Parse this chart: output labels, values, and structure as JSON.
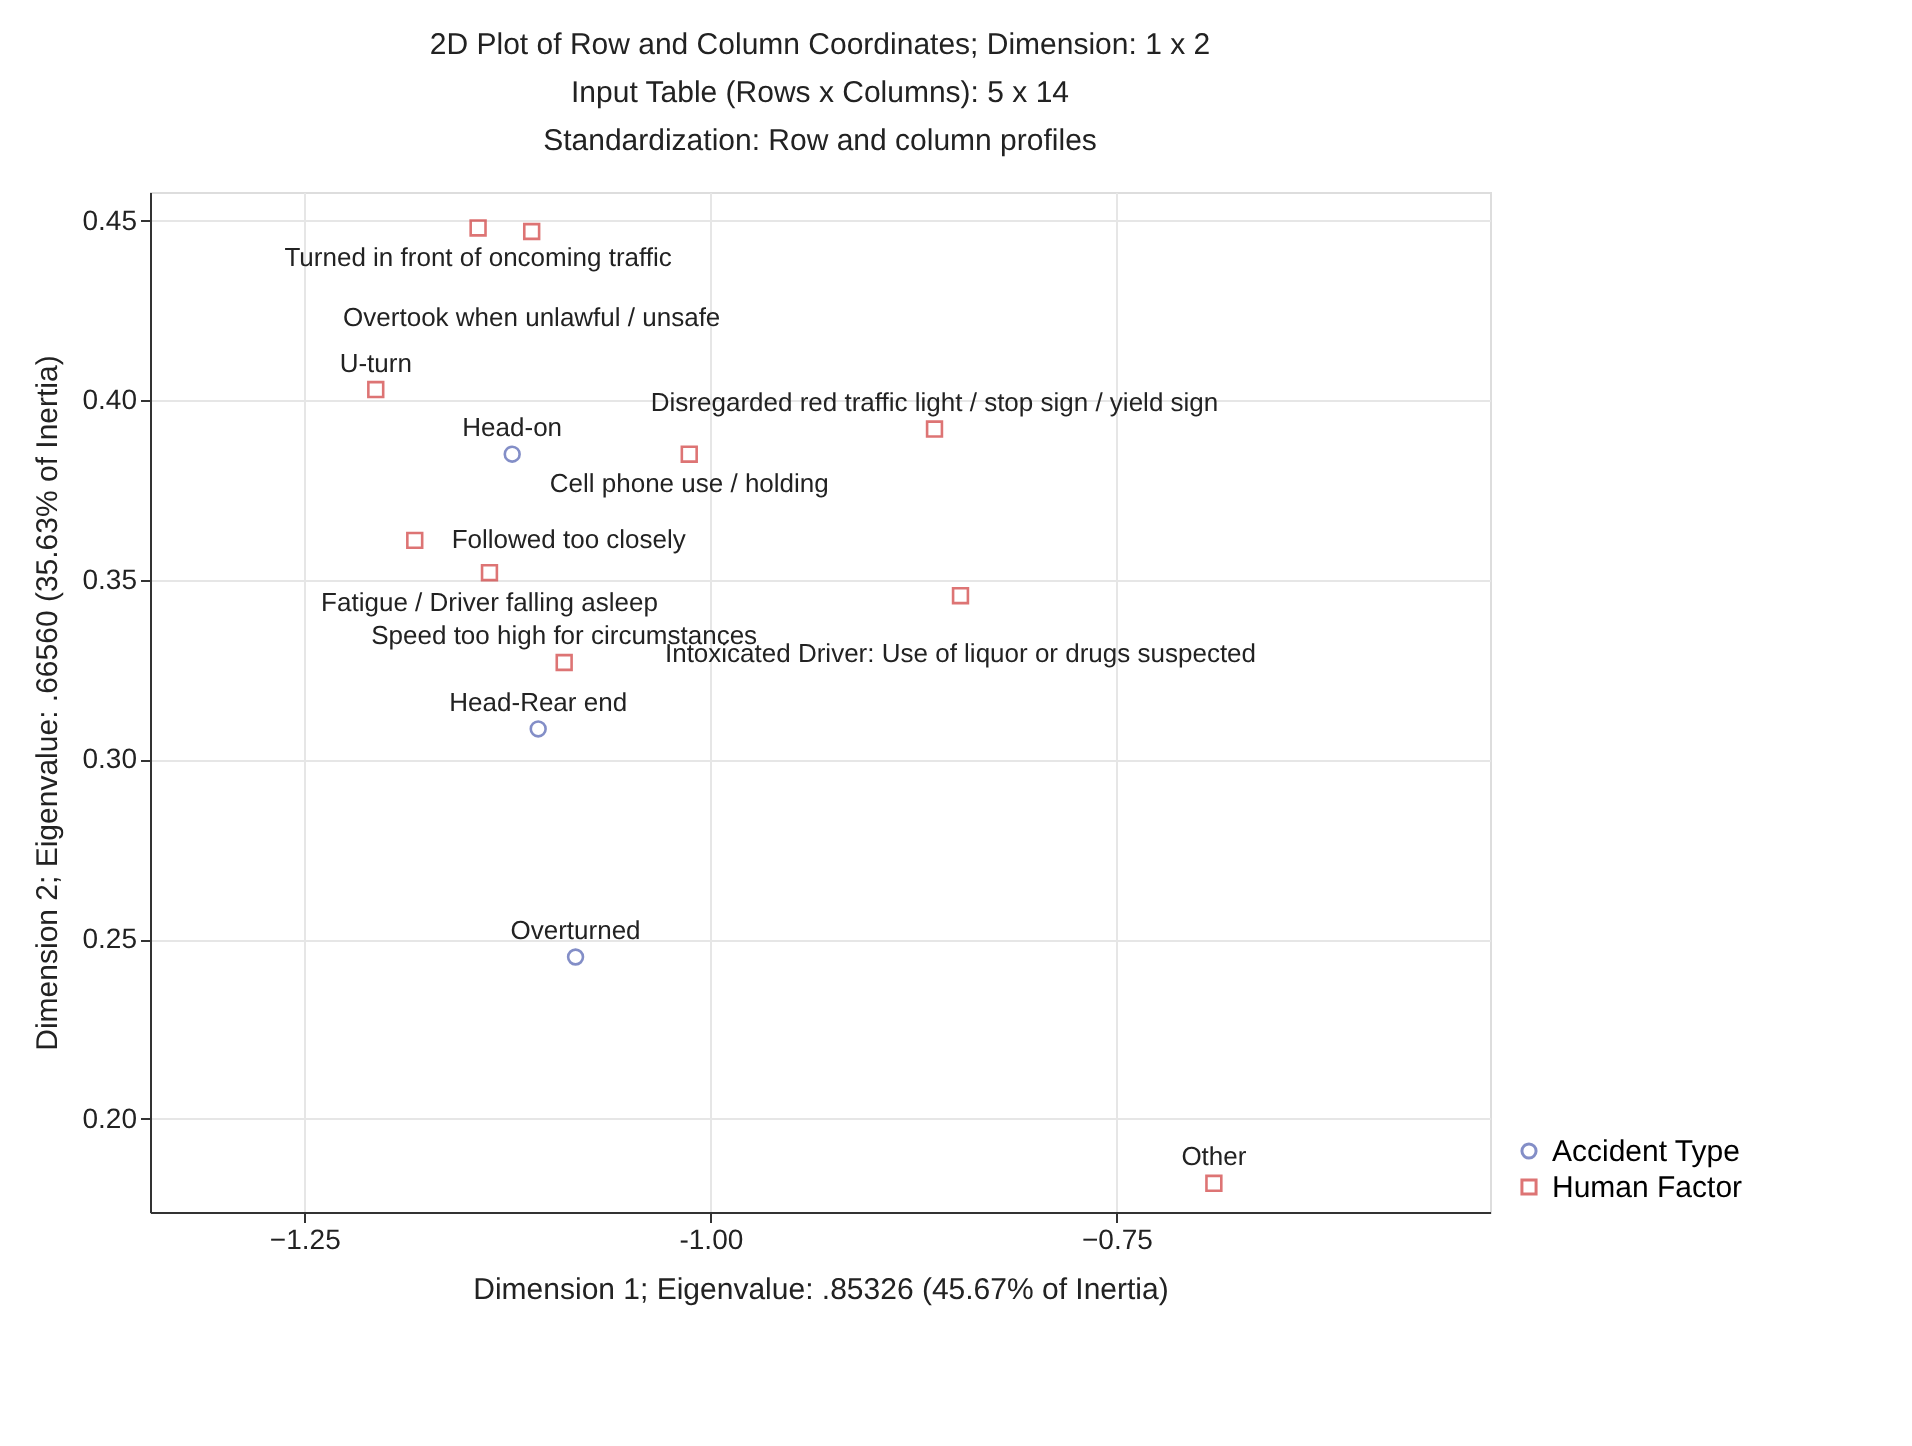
{
  "chart_data": {
    "type": "scatter",
    "title": "2D Plot of Row and Column Coordinates; Dimension:  1 x  2\nInput Table (Rows x Columns): 5 x 14\nStandardization: Row and column profiles",
    "xlabel": "Dimension 1; Eigenvalue: .85326 (45.67% of Inertia)",
    "ylabel": "Dimension 2; Eigenvalue: .66560 (35.63% of Inertia)",
    "xlim": [
      -1.345,
      -0.52
    ],
    "xticks": [
      -1.25,
      {
        "value": -1,
        "label": "-1.00"
      },
      -0.75
    ],
    "ylim": [
      0.174,
      0.458
    ],
    "yticks": [
      {
        "value": 0.2,
        "label": "0.20"
      },
      0.25,
      {
        "value": 0.3,
        "label": "0.30"
      },
      0.35,
      {
        "value": 0.4,
        "label": "0.40"
      },
      0.45
    ],
    "grid": true,
    "legend": "bottom right",
    "series": [
      {
        "name": "Accident Type",
        "color": "#4f5fb0",
        "marker": "circle",
        "x": [
          -1.122,
          -1.106,
          -1.083
        ],
        "values": [
          0.385,
          0.3085,
          0.245
        ],
        "value_labels": [
          "Head-on",
          "Head-Rear end",
          "Overturned"
        ]
      },
      {
        "name": "Human Factor",
        "color": "#d03a3a",
        "marker": "square",
        "x": [
          -1.143,
          -1.11,
          -1.206,
          -1.013,
          -0.862,
          -1.182,
          -1.136,
          -0.846,
          -1.09,
          -0.69
        ],
        "values": [
          0.448,
          0.447,
          0.403,
          0.385,
          0.392,
          0.361,
          0.352,
          0.3456,
          0.327,
          0.182
        ],
        "value_labels": [
          "Turned in front of oncoming traffic",
          "Overtook when unlawful / unsafe",
          "U-turn",
          "Cell phone use / holding",
          "Disregarded red traffic light / stop sign / yield sign",
          "Followed too closely",
          "Fatigue / Driver falling asleep",
          "Intoxicated Driver: Use of  liquor or drugs suspected",
          "Speed too high for circumstances",
          "Other"
        ]
      }
    ]
  }
}
